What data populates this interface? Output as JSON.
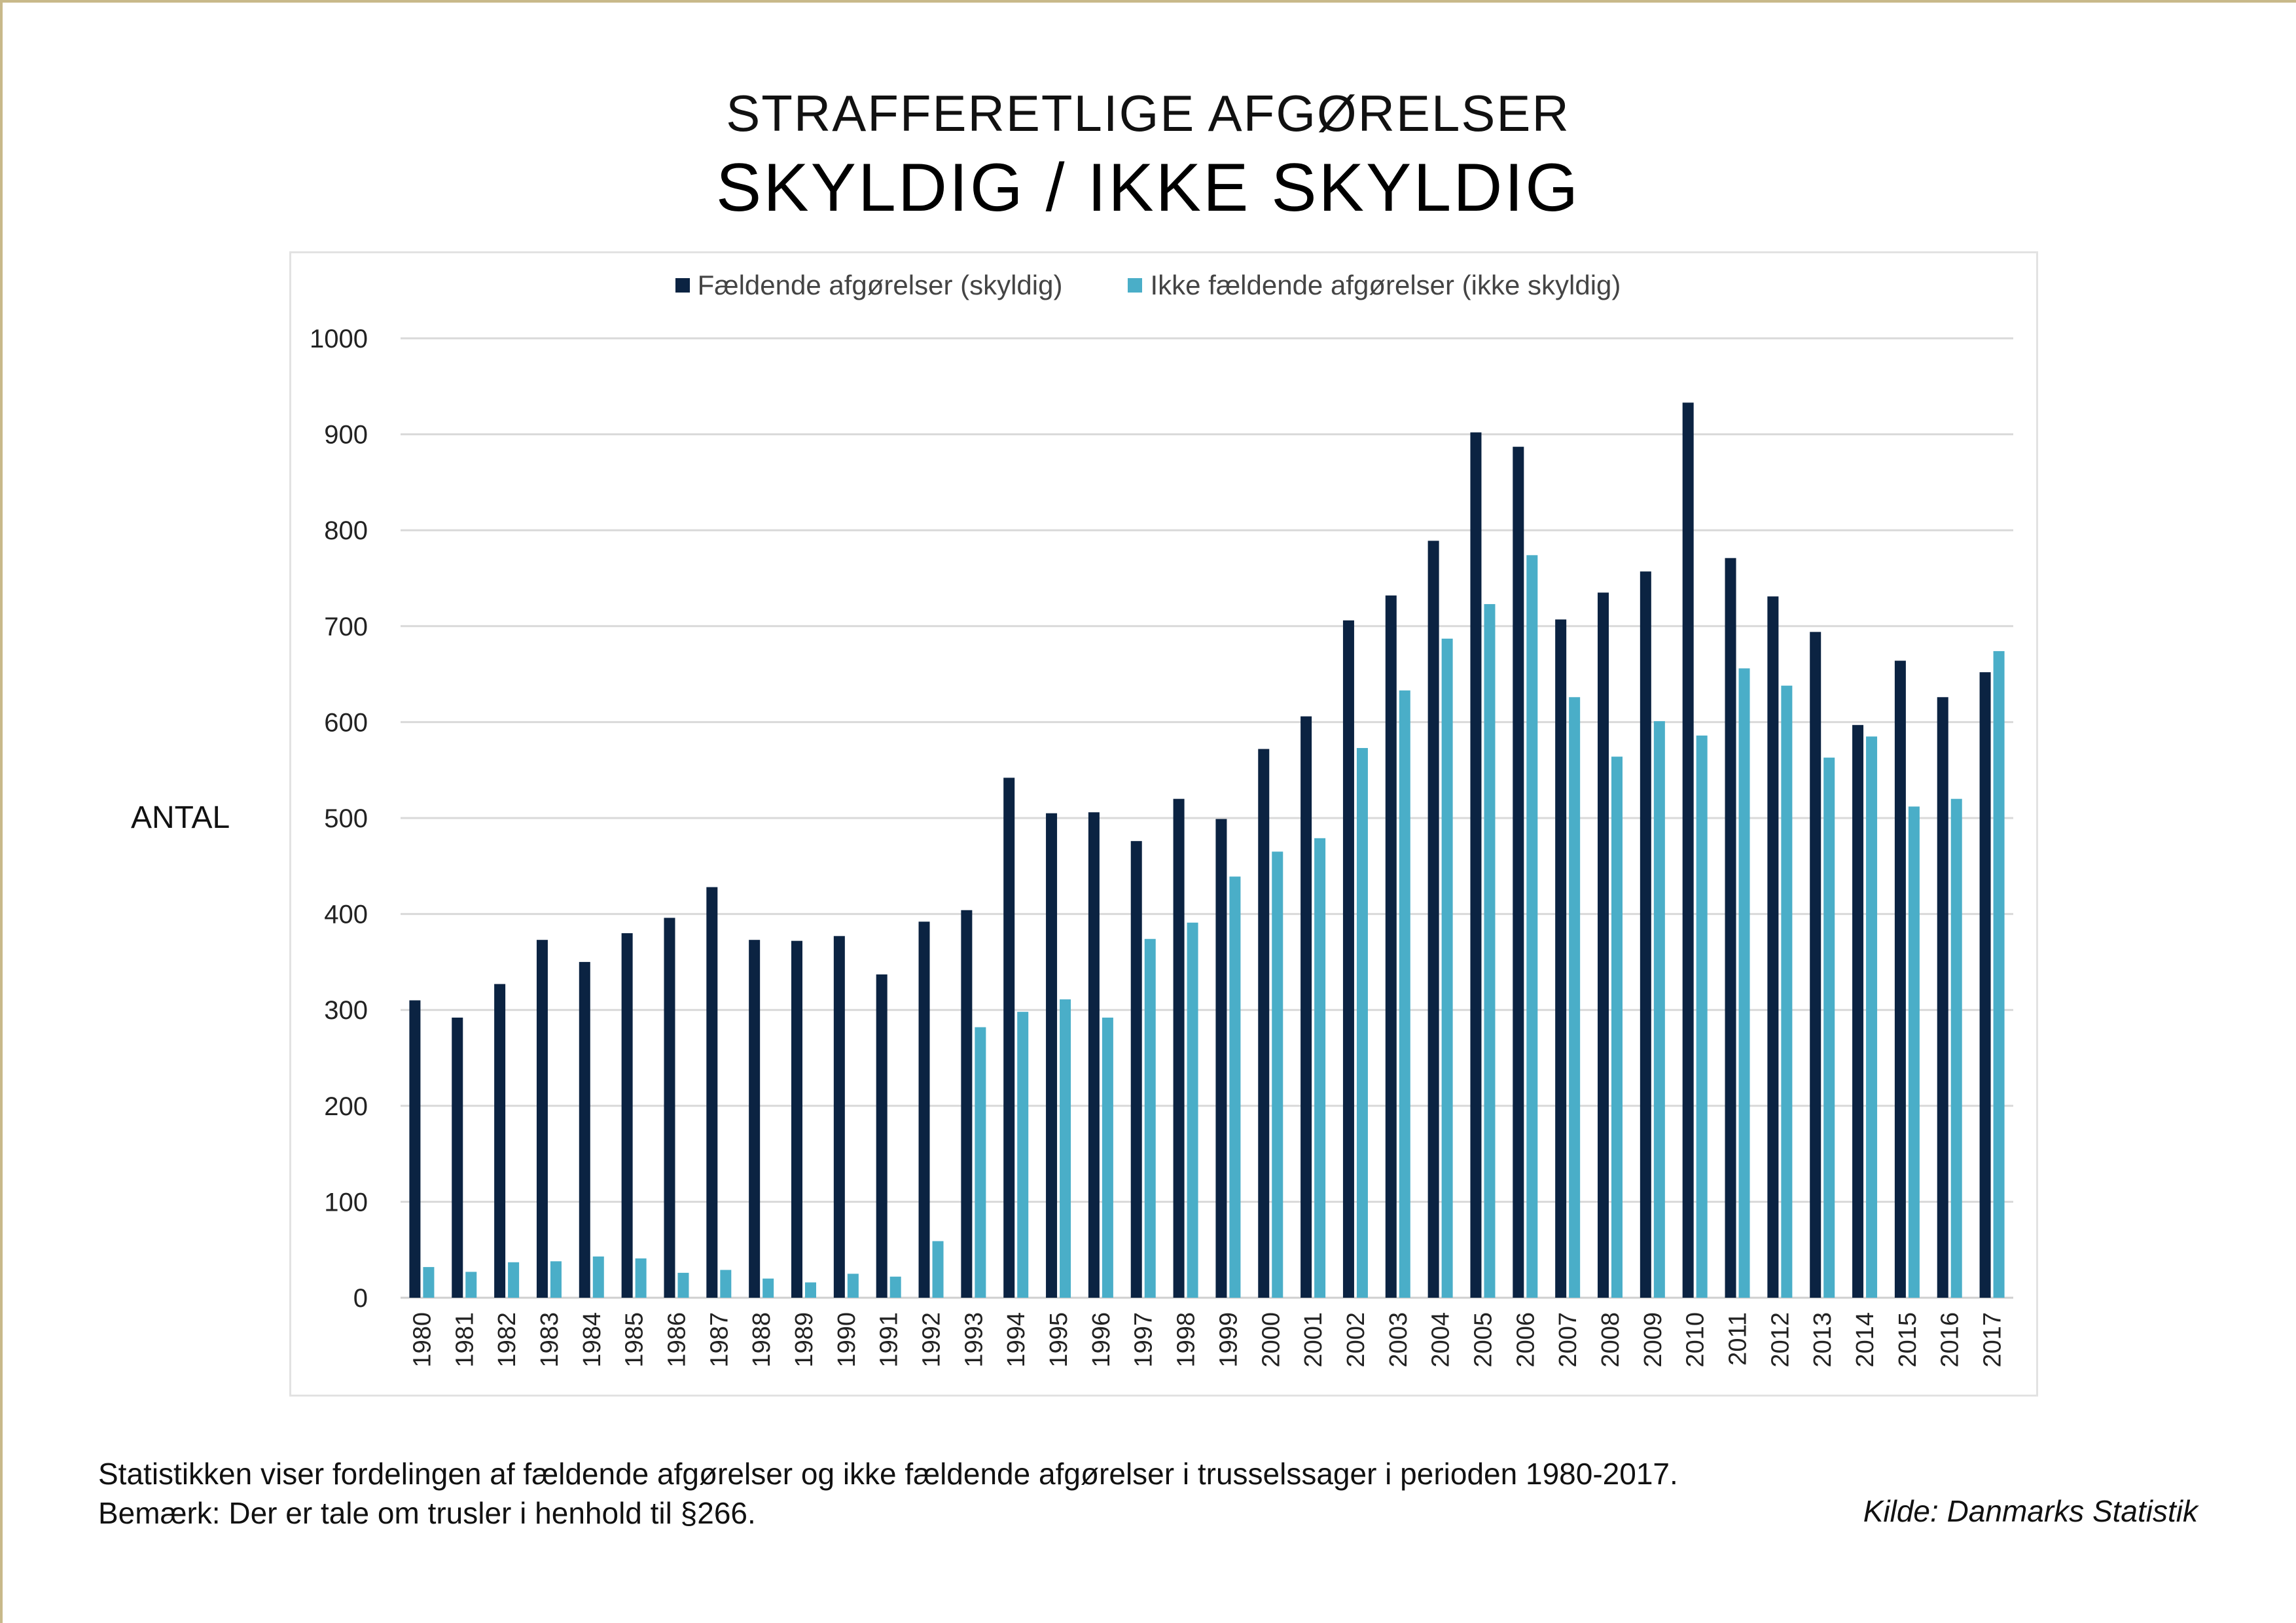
{
  "header": {
    "title": "STRAFFERETLIGE AFGØRELSER",
    "subtitle": "SKYLDIG / IKKE SKYLDIG"
  },
  "chart_data": {
    "type": "bar",
    "ylabel": "ANTAL",
    "xlabel": "",
    "ylim": [
      0,
      1000
    ],
    "yticks": [
      0,
      100,
      200,
      300,
      400,
      500,
      600,
      700,
      800,
      900,
      1000
    ],
    "grid": true,
    "legend_position": "top-center",
    "categories": [
      "1980",
      "1981",
      "1982",
      "1983",
      "1984",
      "1985",
      "1986",
      "1987",
      "1988",
      "1989",
      "1990",
      "1991",
      "1992",
      "1993",
      "1994",
      "1995",
      "1996",
      "1997",
      "1998",
      "1999",
      "2000",
      "2001",
      "2002",
      "2003",
      "2004",
      "2005",
      "2006",
      "2007",
      "2008",
      "2009",
      "2010",
      "2011",
      "2012",
      "2013",
      "2014",
      "2015",
      "2016",
      "2017"
    ],
    "series": [
      {
        "name": "Fældende afgørelser (skyldig)",
        "color": "#0b2342",
        "values": [
          310,
          292,
          327,
          373,
          350,
          380,
          396,
          428,
          373,
          372,
          377,
          337,
          392,
          404,
          542,
          505,
          506,
          476,
          520,
          499,
          572,
          606,
          706,
          732,
          789,
          902,
          887,
          707,
          735,
          757,
          933,
          771,
          731,
          694,
          597,
          664,
          626,
          652
        ]
      },
      {
        "name": "Ikke fældende afgørelser (ikke skyldig)",
        "color": "#4aaec8",
        "values": [
          32,
          27,
          37,
          38,
          43,
          41,
          26,
          29,
          20,
          16,
          25,
          22,
          59,
          282,
          298,
          311,
          292,
          374,
          391,
          439,
          465,
          479,
          573,
          633,
          687,
          723,
          774,
          626,
          564,
          601,
          586,
          656,
          638,
          563,
          585,
          512,
          520,
          674
        ]
      }
    ]
  },
  "footer": {
    "line1": "Statistikken viser fordelingen af fældende afgørelser og ikke fældende afgørelser i trusselssager i perioden 1980-2017.",
    "line2": "Bemærk: Der er tale om trusler i henhold til §266.",
    "source": "Kilde: Danmarks Statistik"
  }
}
